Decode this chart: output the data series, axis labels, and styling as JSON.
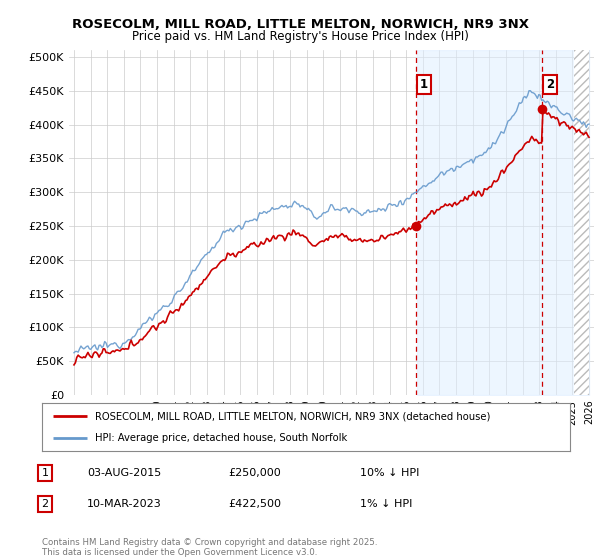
{
  "title1": "ROSECOLM, MILL ROAD, LITTLE MELTON, NORWICH, NR9 3NX",
  "title2": "Price paid vs. HM Land Registry's House Price Index (HPI)",
  "ylabel_ticks": [
    "£0",
    "£50K",
    "£100K",
    "£150K",
    "£200K",
    "£250K",
    "£300K",
    "£350K",
    "£400K",
    "£450K",
    "£500K"
  ],
  "ytick_values": [
    0,
    50000,
    100000,
    150000,
    200000,
    250000,
    300000,
    350000,
    400000,
    450000,
    500000
  ],
  "year_start": 1995,
  "year_end": 2026,
  "sale1_year": 2015.6,
  "sale1_price": 250000,
  "sale1_label": "1",
  "sale1_date": "03-AUG-2015",
  "sale1_hpi_diff": "10% ↓ HPI",
  "sale2_year": 2023.19,
  "sale2_price": 422500,
  "sale2_label": "2",
  "sale2_date": "10-MAR-2023",
  "sale2_hpi_diff": "1% ↓ HPI",
  "line_color_property": "#cc0000",
  "line_color_hpi": "#6699cc",
  "fill_color_hpi": "#ddeeff",
  "legend_label_property": "ROSECOLM, MILL ROAD, LITTLE MELTON, NORWICH, NR9 3NX (detached house)",
  "legend_label_hpi": "HPI: Average price, detached house, South Norfolk",
  "footer": "Contains HM Land Registry data © Crown copyright and database right 2025.\nThis data is licensed under the Open Government Licence v3.0.",
  "background_color": "#ffffff",
  "plot_bg_color": "#ffffff",
  "grid_color": "#cccccc"
}
